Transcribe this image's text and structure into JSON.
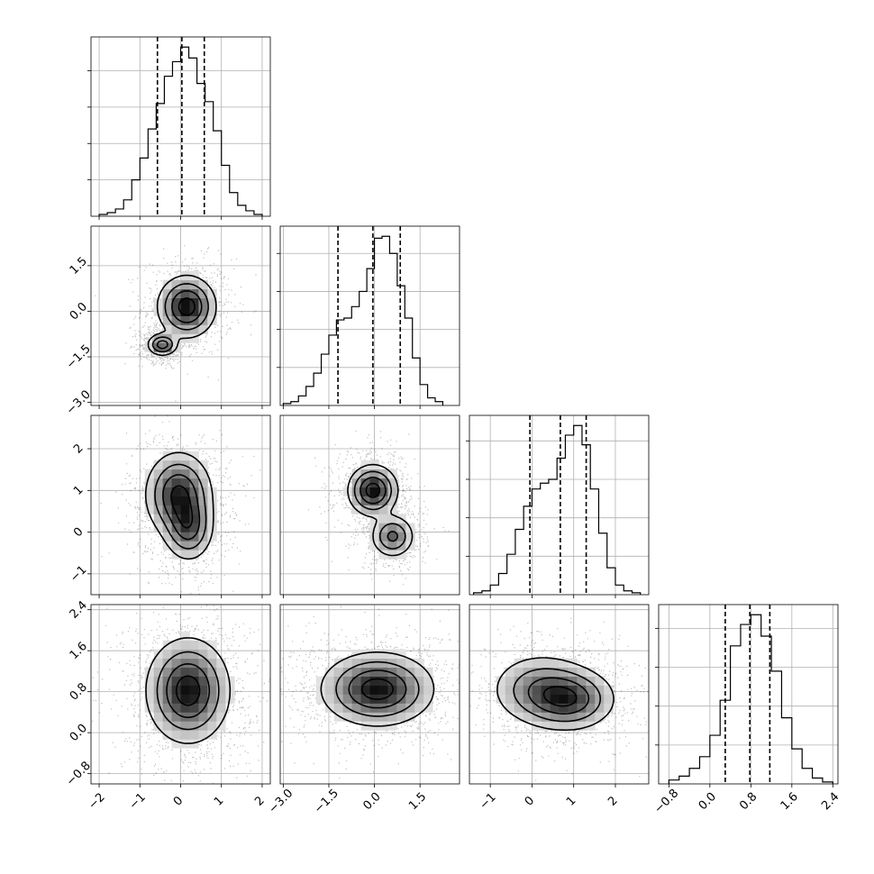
{
  "chart_data": {
    "type": "corner",
    "title": "",
    "grid": true,
    "quantiles": [
      0.16,
      0.5,
      0.84
    ],
    "parameters": [
      {
        "ticks": [
          -2,
          -1,
          0,
          1,
          2
        ],
        "tick_labels": [
          "−2",
          "−1",
          "0",
          "1",
          "2"
        ],
        "range": [
          -2.2,
          2.2
        ],
        "quantile_values": [
          -0.57,
          0.03,
          0.58
        ],
        "histogram": {
          "bin_edges": [
            -2.0,
            -1.8,
            -1.6,
            -1.4,
            -1.2,
            -1.0,
            -0.8,
            -0.6,
            -0.4,
            -0.2,
            0.0,
            0.2,
            0.4,
            0.6,
            0.8,
            1.0,
            1.2,
            1.4,
            1.6,
            1.8,
            2.0
          ],
          "counts": [
            0.01,
            0.02,
            0.04,
            0.09,
            0.2,
            0.32,
            0.48,
            0.62,
            0.77,
            0.85,
            0.93,
            0.87,
            0.73,
            0.63,
            0.47,
            0.28,
            0.13,
            0.06,
            0.03,
            0.01
          ]
        }
      },
      {
        "ticks": [
          -3.0,
          -1.5,
          0.0,
          1.5
        ],
        "tick_labels": [
          "−3.0",
          "−1.5",
          "0.0",
          "1.5"
        ],
        "range": [
          -3.1,
          2.8
        ],
        "quantile_values": [
          -1.2,
          -0.05,
          0.85
        ],
        "histogram": {
          "bin_edges": [
            -3.0,
            -2.75,
            -2.5,
            -2.25,
            -2.0,
            -1.75,
            -1.5,
            -1.25,
            -1.0,
            -0.75,
            -0.5,
            -0.25,
            0.0,
            0.25,
            0.5,
            0.75,
            1.0,
            1.25,
            1.5,
            1.75,
            2.0,
            2.25
          ],
          "counts": [
            0.01,
            0.02,
            0.05,
            0.1,
            0.17,
            0.27,
            0.37,
            0.45,
            0.46,
            0.52,
            0.6,
            0.72,
            0.88,
            0.89,
            0.8,
            0.63,
            0.46,
            0.25,
            0.11,
            0.04,
            0.02
          ]
        }
      },
      {
        "ticks": [
          -1,
          0,
          1,
          2
        ],
        "tick_labels": [
          "−1",
          "0",
          "1",
          "2"
        ],
        "range": [
          -1.5,
          2.8
        ],
        "quantile_values": [
          -0.05,
          0.68,
          1.3
        ],
        "histogram": {
          "bin_edges": [
            -1.4,
            -1.2,
            -1.0,
            -0.8,
            -0.6,
            -0.4,
            -0.2,
            0.0,
            0.2,
            0.4,
            0.6,
            0.8,
            1.0,
            1.2,
            1.4,
            1.6,
            1.8,
            2.0,
            2.2,
            2.4,
            2.6
          ],
          "counts": [
            0.01,
            0.02,
            0.05,
            0.11,
            0.21,
            0.34,
            0.46,
            0.55,
            0.58,
            0.6,
            0.71,
            0.83,
            0.88,
            0.78,
            0.55,
            0.32,
            0.14,
            0.05,
            0.02,
            0.01
          ]
        }
      },
      {
        "ticks": [
          -0.8,
          0.0,
          0.8,
          1.6,
          2.4
        ],
        "tick_labels": [
          "−0.8",
          "0.0",
          "0.8",
          "1.6",
          "2.4"
        ],
        "range": [
          -1.0,
          2.5
        ],
        "quantile_values": [
          0.3,
          0.78,
          1.17
        ],
        "histogram": {
          "bin_edges": [
            -0.8,
            -0.6,
            -0.4,
            -0.2,
            0.0,
            0.2,
            0.4,
            0.6,
            0.8,
            1.0,
            1.2,
            1.4,
            1.6,
            1.8,
            2.0,
            2.2,
            2.4
          ],
          "counts": [
            0.02,
            0.04,
            0.08,
            0.14,
            0.25,
            0.43,
            0.71,
            0.82,
            0.87,
            0.76,
            0.58,
            0.34,
            0.18,
            0.08,
            0.03,
            0.01
          ]
        }
      }
    ],
    "pairs": [
      {
        "x_param": 0,
        "y_param": 1,
        "modes": [
          {
            "center": [
              0.15,
              0.15
            ],
            "peak": 1.0,
            "sigma": [
              0.35,
              0.5
            ]
          },
          {
            "center": [
              -0.45,
              -1.1
            ],
            "peak": 0.75,
            "sigma": [
              0.18,
              0.18
            ]
          }
        ]
      },
      {
        "x_param": 0,
        "y_param": 2,
        "modes": [
          {
            "center": [
              -0.05,
              0.9
            ],
            "peak": 1.0,
            "sigma": [
              0.4,
              0.5
            ]
          },
          {
            "center": [
              0.2,
              0.1
            ],
            "peak": 0.7,
            "sigma": [
              0.3,
              0.4
            ]
          }
        ]
      },
      {
        "x_param": 1,
        "y_param": 2,
        "modes": [
          {
            "center": [
              -0.05,
              1.0
            ],
            "peak": 1.0,
            "sigma": [
              0.4,
              0.3
            ]
          },
          {
            "center": [
              0.6,
              -0.1
            ],
            "peak": 0.65,
            "sigma": [
              0.35,
              0.25
            ]
          }
        ]
      },
      {
        "x_param": 0,
        "y_param": 3,
        "modes": [
          {
            "center": [
              0.18,
              0.82
            ],
            "peak": 1.0,
            "sigma": [
              0.5,
              0.5
            ]
          }
        ]
      },
      {
        "x_param": 1,
        "y_param": 3,
        "modes": [
          {
            "center": [
              0.1,
              0.85
            ],
            "peak": 1.0,
            "sigma": [
              0.9,
              0.35
            ]
          }
        ]
      },
      {
        "x_param": 2,
        "y_param": 3,
        "modes": [
          {
            "center": [
              0.9,
              0.65
            ],
            "peak": 1.0,
            "sigma": [
              0.55,
              0.3
            ]
          },
          {
            "center": [
              0.2,
              0.85
            ],
            "peak": 0.7,
            "sigma": [
              0.6,
              0.35
            ]
          }
        ]
      }
    ]
  }
}
